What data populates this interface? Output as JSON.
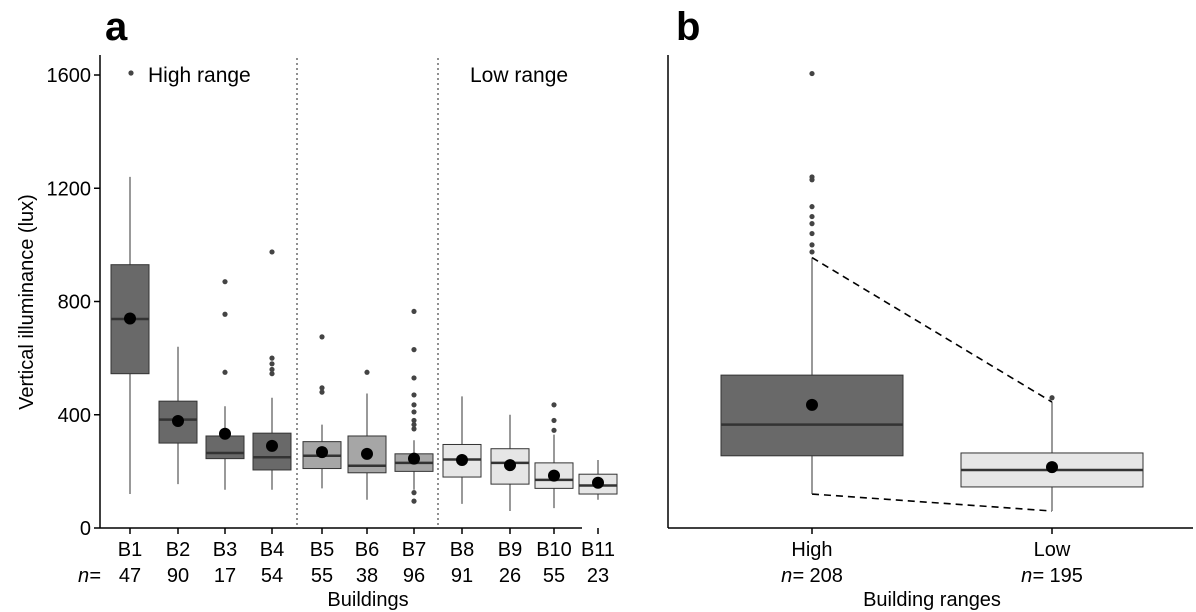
{
  "chart_data": [
    {
      "panel": "a",
      "type": "boxplot",
      "ylabel": "Vertical illuminance (lux)",
      "xlabel": "Buildings",
      "n_prefix": "n=",
      "ylim": [
        0,
        1650
      ],
      "yticks": [
        0,
        400,
        800,
        1200,
        1600
      ],
      "grid": false,
      "group_labels": [
        "High range",
        "Low range"
      ],
      "groups": [
        {
          "name": "High range",
          "color": "#696969"
        },
        {
          "name": "",
          "color": "#a6a6a6"
        },
        {
          "name": "Low range",
          "color": "#e6e6e6"
        }
      ],
      "categories": [
        "B1",
        "B2",
        "B3",
        "B4",
        "B5",
        "B6",
        "B7",
        "B8",
        "B9",
        "B10",
        "B11"
      ],
      "n": [
        "47",
        "90",
        "17",
        "54",
        "55",
        "38",
        "96",
        "91",
        "26",
        "55",
        "23"
      ],
      "boxes": [
        {
          "q1": 545,
          "median": 738,
          "q3": 930,
          "wlo": 120,
          "whi": 1240,
          "mean": 740,
          "group": 0,
          "outliers": []
        },
        {
          "q1": 300,
          "median": 383,
          "q3": 448,
          "wlo": 155,
          "whi": 640,
          "mean": 378,
          "group": 0,
          "outliers": []
        },
        {
          "q1": 245,
          "median": 265,
          "q3": 325,
          "wlo": 135,
          "whi": 430,
          "mean": 333,
          "group": 0,
          "outliers": [
            550,
            755,
            870
          ]
        },
        {
          "q1": 205,
          "median": 250,
          "q3": 335,
          "wlo": 135,
          "whi": 460,
          "mean": 290,
          "group": 0,
          "outliers": [
            545,
            560,
            580,
            600,
            975
          ]
        },
        {
          "q1": 210,
          "median": 255,
          "q3": 305,
          "wlo": 140,
          "whi": 365,
          "mean": 268,
          "group": 1,
          "outliers": [
            480,
            495,
            675
          ]
        },
        {
          "q1": 195,
          "median": 220,
          "q3": 325,
          "wlo": 100,
          "whi": 475,
          "mean": 262,
          "group": 1,
          "outliers": [
            550
          ]
        },
        {
          "q1": 200,
          "median": 230,
          "q3": 262,
          "wlo": 135,
          "whi": 310,
          "mean": 245,
          "group": 1,
          "outliers": [
            95,
            125,
            350,
            365,
            380,
            410,
            435,
            470,
            530,
            630,
            765
          ]
        },
        {
          "q1": 180,
          "median": 242,
          "q3": 295,
          "wlo": 85,
          "whi": 465,
          "mean": 240,
          "group": 2,
          "outliers": []
        },
        {
          "q1": 155,
          "median": 230,
          "q3": 280,
          "wlo": 60,
          "whi": 400,
          "mean": 222,
          "group": 2,
          "outliers": []
        },
        {
          "q1": 140,
          "median": 170,
          "q3": 230,
          "wlo": 70,
          "whi": 330,
          "mean": 185,
          "group": 2,
          "outliers": [
            345,
            380,
            435
          ]
        },
        {
          "q1": 120,
          "median": 150,
          "q3": 190,
          "wlo": 100,
          "whi": 240,
          "mean": 160,
          "group": 2,
          "outliers": []
        }
      ],
      "dividers_after": [
        4,
        7
      ]
    },
    {
      "panel": "b",
      "type": "boxplot",
      "xlabel": "Building ranges",
      "n_prefix": "n=",
      "ylim": [
        0,
        1650
      ],
      "categories": [
        "High",
        "Low"
      ],
      "n": [
        "208",
        "195"
      ],
      "boxes": [
        {
          "q1": 255,
          "median": 365,
          "q3": 540,
          "wlo": 120,
          "whi": 955,
          "mean": 435,
          "color": "#696969",
          "outliers": [
            975,
            1000,
            1040,
            1075,
            1100,
            1135,
            1230,
            1240,
            1605
          ]
        },
        {
          "q1": 145,
          "median": 205,
          "q3": 265,
          "wlo": 60,
          "whi": 445,
          "mean": 215,
          "color": "#e6e6e6",
          "outliers": [
            460
          ]
        }
      ]
    }
  ]
}
